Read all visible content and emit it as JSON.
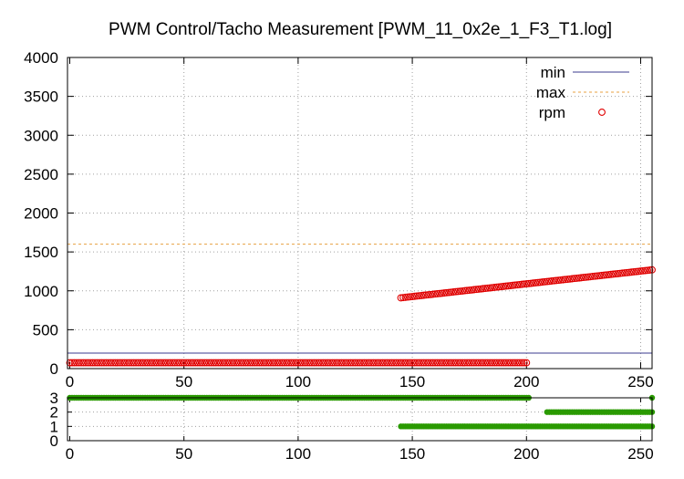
{
  "colors": {
    "min": "#3b3b8f",
    "max": "#e8a040",
    "rpm": "#e00000",
    "state": "#2a9a00",
    "grid": "#a0a0a0",
    "axis": "#000000"
  },
  "chart_data": [
    {
      "type": "scatter",
      "title": "PWM Control/Tacho Measurement [PWM_11_0x2e_1_F3_T1.log]",
      "xlabel": "",
      "ylabel": "",
      "xlim": [
        -1,
        255
      ],
      "ylim": [
        0,
        4000
      ],
      "x_ticks": [
        0,
        50,
        100,
        150,
        200,
        250
      ],
      "x_tick_labels": [
        "0",
        "50",
        "100",
        "150",
        "200",
        "250"
      ],
      "y_ticks": [
        0,
        500,
        1000,
        1500,
        2000,
        2500,
        3000,
        3500,
        4000
      ],
      "y_tick_labels": [
        "0",
        "500",
        "1000",
        "1500",
        "2000",
        "2500",
        "3000",
        "3500",
        "4000"
      ],
      "grid": true,
      "legend_position": "top-right",
      "series": [
        {
          "name": "min",
          "style": "line",
          "x": [
            -1,
            255
          ],
          "y": [
            200,
            200
          ]
        },
        {
          "name": "max",
          "style": "dashed-line",
          "x": [
            -1,
            255
          ],
          "y": [
            1600,
            1600
          ]
        },
        {
          "name": "rpm",
          "style": "open-circle",
          "segments": [
            {
              "x_start": 0,
              "x_end": 200,
              "step": 1,
              "y_start": 75,
              "y_end": 75
            },
            {
              "x_start": 145,
              "x_end": 255,
              "step": 1,
              "y_start": 910,
              "y_end": 1270
            }
          ]
        }
      ]
    },
    {
      "type": "scatter",
      "title": "",
      "xlabel": "",
      "ylabel": "",
      "xlim": [
        -1,
        255
      ],
      "ylim": [
        0,
        3
      ],
      "x_ticks": [
        0,
        50,
        100,
        150,
        200,
        250
      ],
      "x_tick_labels": [
        "0",
        "50",
        "100",
        "150",
        "200",
        "250"
      ],
      "y_ticks": [
        0,
        1,
        2,
        3
      ],
      "y_tick_labels": [
        "0",
        "1",
        "2",
        "3"
      ],
      "grid": true,
      "series": [
        {
          "style": "filled-dot",
          "segments": [
            {
              "x_start": 0,
              "x_end": 201,
              "step": 1,
              "y_start": 3,
              "y_end": 3
            },
            {
              "x_start": 145,
              "x_end": 255,
              "step": 1,
              "y_start": 1,
              "y_end": 1
            },
            {
              "x_start": 209,
              "x_end": 255,
              "step": 1,
              "y_start": 2,
              "y_end": 2
            },
            {
              "x_start": 255,
              "x_end": 255,
              "step": 1,
              "y_start": 3,
              "y_end": 3
            }
          ]
        }
      ]
    }
  ]
}
